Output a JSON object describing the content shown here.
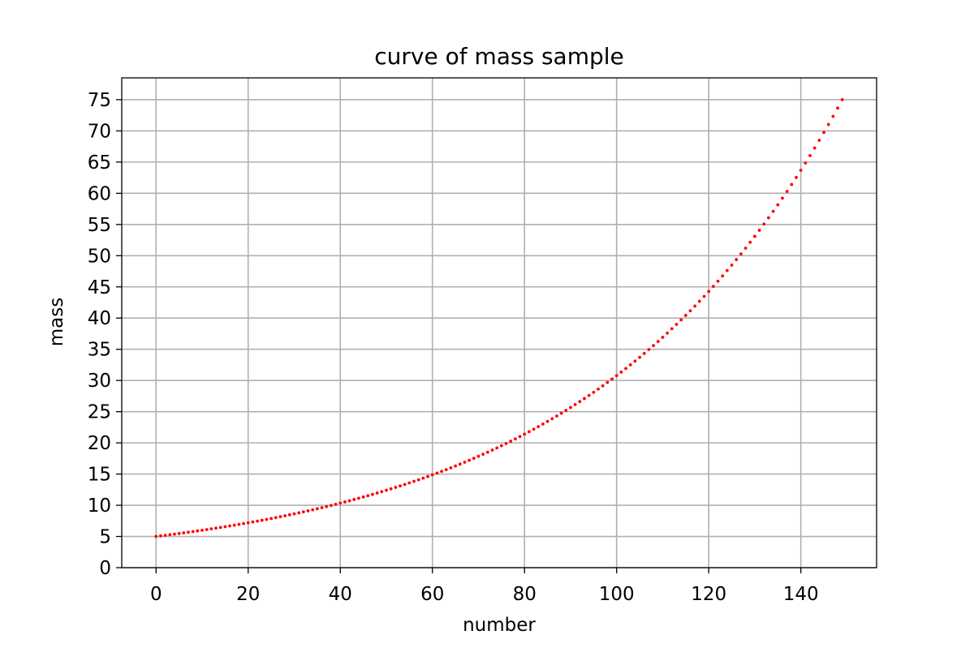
{
  "chart_data": {
    "type": "scatter",
    "title": "curve of mass sample",
    "xlabel": "number",
    "ylabel": "mass",
    "xlim": [
      -7.45,
      156.45
    ],
    "ylim": [
      0,
      78.5
    ],
    "xticks": [
      0,
      20,
      40,
      60,
      80,
      100,
      120,
      140
    ],
    "yticks": [
      0,
      5,
      10,
      15,
      20,
      25,
      30,
      35,
      40,
      45,
      50,
      55,
      60,
      65,
      70,
      75
    ],
    "grid": true,
    "marker_color": "#ff0000",
    "series": [
      {
        "x_start": 0,
        "x_end": 149,
        "x_step": 1,
        "y_start": 5.0,
        "y_end": 75.0,
        "description": "mass grows exponentially from 5 at number 0 to 75 at number 149"
      }
    ]
  }
}
